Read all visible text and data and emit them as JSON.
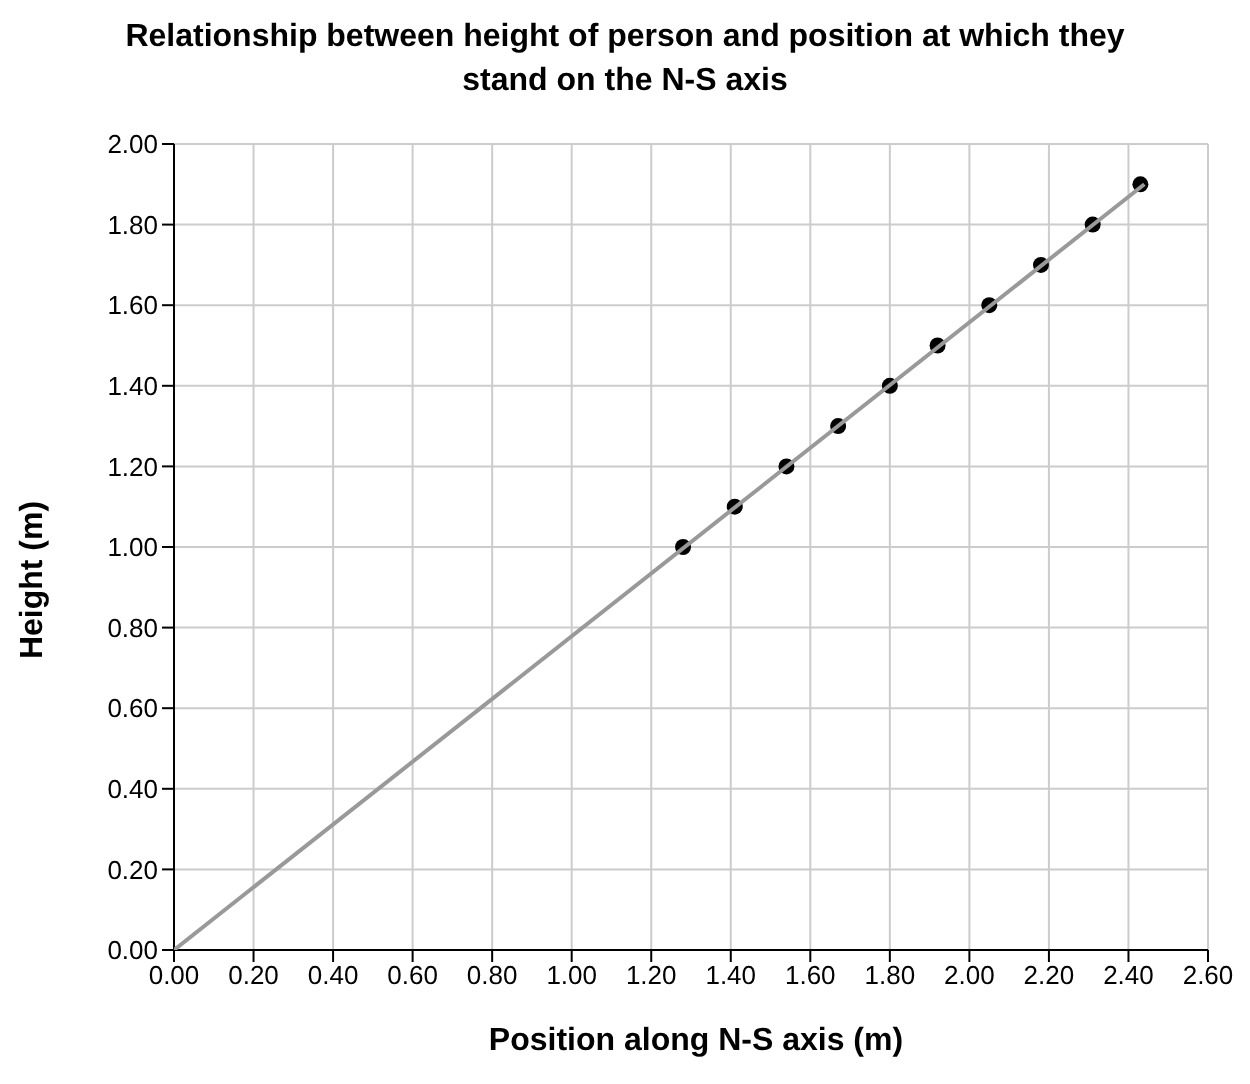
{
  "chart_data": {
    "type": "scatter",
    "title": "Relationship between height of person and position at which they stand on the N-S axis",
    "xlabel": "Position along N-S axis (m)",
    "ylabel": "Height (m)",
    "series": [
      {
        "color": "#000000",
        "x": [
          1.28,
          1.41,
          1.54,
          1.67,
          1.8,
          1.92,
          2.05,
          2.18,
          2.31,
          2.43
        ],
        "values": [
          1.0,
          1.1,
          1.2,
          1.3,
          1.4,
          1.5,
          1.6,
          1.7,
          1.8,
          1.9
        ]
      },
      {
        "type": "line",
        "marker": "none",
        "color": "#999999",
        "x": [
          0,
          2.44
        ],
        "values": [
          0,
          1.9
        ]
      }
    ],
    "xlim": [
      0,
      2.6
    ],
    "xticks": [
      {
        "value": 0,
        "label": "0.00"
      },
      {
        "value": 0.2,
        "label": "0.20"
      },
      {
        "value": 0.4,
        "label": "0.40"
      },
      {
        "value": 0.6,
        "label": "0.60"
      },
      {
        "value": 0.8,
        "label": "0.80"
      },
      {
        "value": 1,
        "label": "1.00"
      },
      {
        "value": 1.2,
        "label": "1.20"
      },
      {
        "value": 1.4,
        "label": "1.40"
      },
      {
        "value": 1.6,
        "label": "1.60"
      },
      {
        "value": 1.8,
        "label": "1.80"
      },
      {
        "value": 2,
        "label": "2.00"
      },
      {
        "value": 2.2,
        "label": "2.20"
      },
      {
        "value": 2.4,
        "label": "2.40"
      },
      {
        "value": 2.6,
        "label": "2.60"
      }
    ],
    "ylim": [
      0,
      2
    ],
    "yticks": [
      {
        "value": 0,
        "label": "0.00"
      },
      {
        "value": 0.2,
        "label": "0.20"
      },
      {
        "value": 0.4,
        "label": "0.40"
      },
      {
        "value": 0.6,
        "label": "0.60"
      },
      {
        "value": 0.8,
        "label": "0.80"
      },
      {
        "value": 1,
        "label": "1.00"
      },
      {
        "value": 1.2,
        "label": "1.20"
      },
      {
        "value": 1.4,
        "label": "1.40"
      },
      {
        "value": 1.6,
        "label": "1.60"
      },
      {
        "value": 1.8,
        "label": "1.80"
      },
      {
        "value": 2,
        "label": "2.00"
      }
    ],
    "grid": true,
    "marker": "circle"
  }
}
